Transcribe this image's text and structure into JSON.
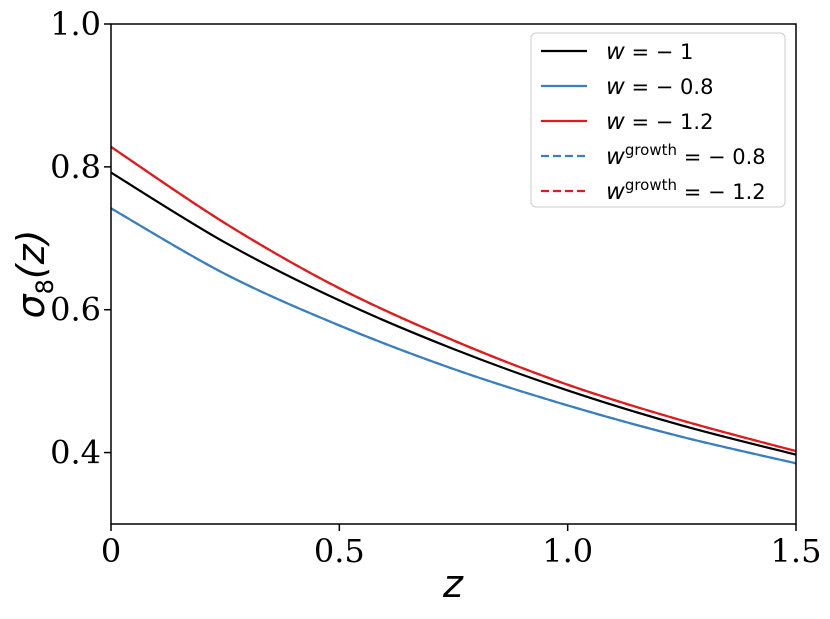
{
  "chart_data": {
    "type": "line",
    "xlabel": "z",
    "ylabel": "σ8(z)",
    "xlim": [
      0,
      1.5
    ],
    "ylim": [
      0.3,
      1.0
    ],
    "xticks": [
      0,
      0.5,
      1.0,
      1.5
    ],
    "xtick_labels": [
      "0",
      "0.5",
      "1.0",
      "1.5"
    ],
    "yticks": [
      0.4,
      0.6,
      0.8,
      1.0
    ],
    "ytick_labels": [
      "0.4",
      "0.6",
      "0.8",
      "1.0"
    ],
    "grid": false,
    "legend_position": "top-right",
    "x": [
      0,
      0.25,
      0.5,
      0.75,
      1.0,
      1.25,
      1.5
    ],
    "series": [
      {
        "name": "w = −1",
        "legend": {
          "base": "w",
          "sup": "",
          "rest": " = − 1"
        },
        "color": "#000000",
        "dashed": false,
        "values": [
          0.792,
          0.694,
          0.613,
          0.545,
          0.487,
          0.438,
          0.397
        ]
      },
      {
        "name": "w = −0.8",
        "legend": {
          "base": "w",
          "sup": "",
          "rest": " = − 0.8"
        },
        "color": "#3a7fbf",
        "dashed": false,
        "values": [
          0.742,
          0.65,
          0.578,
          0.517,
          0.466,
          0.422,
          0.385
        ]
      },
      {
        "name": "w = −1.2",
        "legend": {
          "base": "w",
          "sup": "",
          "rest": " = − 1.2"
        },
        "color": "#e31a1c",
        "dashed": false,
        "values": [
          0.828,
          0.721,
          0.63,
          0.557,
          0.495,
          0.445,
          0.402
        ]
      },
      {
        "name": "w^growth = −0.8",
        "legend": {
          "base": "w",
          "sup": "growth",
          "rest": " = − 0.8"
        },
        "color": "#3a7fbf",
        "dashed": true,
        "values": [
          0.742,
          0.65,
          0.578,
          0.517,
          0.466,
          0.422,
          0.385
        ]
      },
      {
        "name": "w^growth = −1.2",
        "legend": {
          "base": "w",
          "sup": "growth",
          "rest": " = − 1.2"
        },
        "color": "#e31a1c",
        "dashed": true,
        "values": [
          0.828,
          0.721,
          0.63,
          0.557,
          0.495,
          0.445,
          0.402
        ]
      }
    ]
  }
}
